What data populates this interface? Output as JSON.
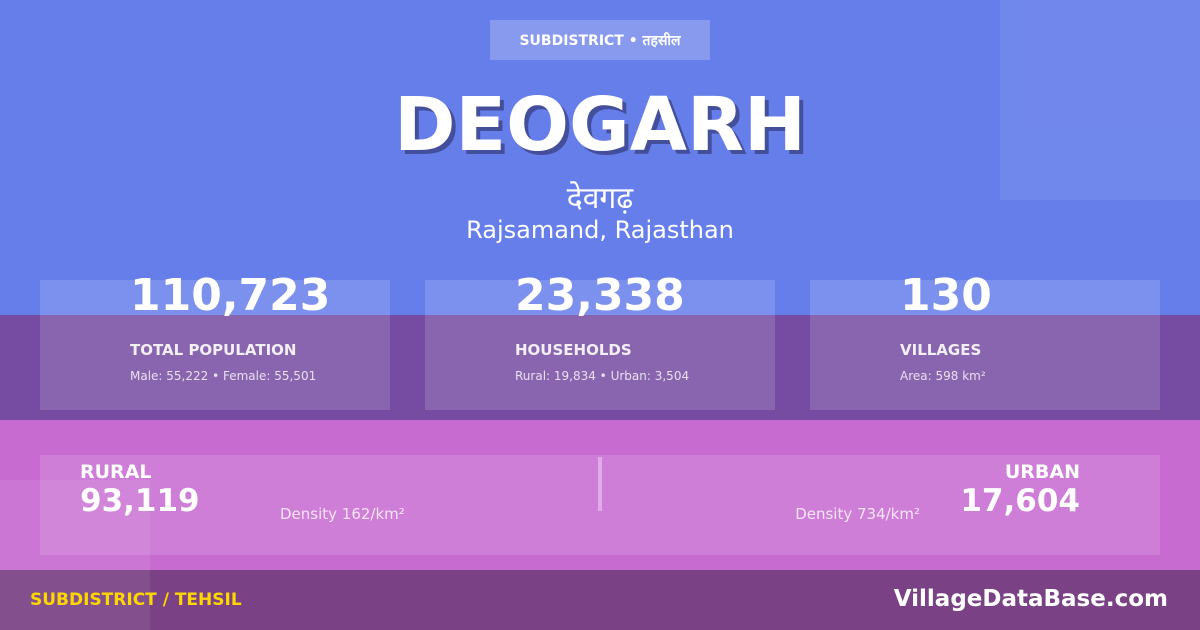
{
  "badge": "SUBDISTRICT • तहसील",
  "title": "DEOGARH",
  "title_hindi": "देवगढ़",
  "location": "Rajsamand, Rajasthan",
  "stats": [
    {
      "value": "110,723",
      "label": "TOTAL POPULATION",
      "sub": "Male: 55,222 • Female: 55,501"
    },
    {
      "value": "23,338",
      "label": "HOUSEHOLDS",
      "sub": "Rural: 19,834 • Urban: 3,504"
    },
    {
      "value": "130",
      "label": "VILLAGES",
      "sub": "Area: 598 km²"
    }
  ],
  "rural": {
    "label": "RURAL",
    "value": "93,119",
    "density": "Density 162/km²"
  },
  "urban": {
    "label": "URBAN",
    "value": "17,604",
    "density": "Density 734/km²"
  },
  "footer": {
    "left": "SUBDISTRICT / TEHSIL",
    "right": "VillageDataBase.com"
  },
  "colors": {
    "top": "#667eea",
    "middle": "#764ba2",
    "pink": "#c76bd1",
    "footer": "#7a4284",
    "accent": "#ffd700"
  }
}
